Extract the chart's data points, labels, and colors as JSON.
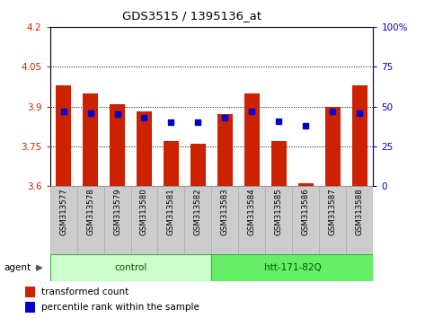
{
  "title": "GDS3515 / 1395136_at",
  "samples": [
    "GSM313577",
    "GSM313578",
    "GSM313579",
    "GSM313580",
    "GSM313581",
    "GSM313582",
    "GSM313583",
    "GSM313584",
    "GSM313585",
    "GSM313586",
    "GSM313587",
    "GSM313588"
  ],
  "transformed_count": [
    3.98,
    3.95,
    3.91,
    3.88,
    3.77,
    3.76,
    3.87,
    3.95,
    3.77,
    3.61,
    3.9,
    3.98
  ],
  "percentile_rank": [
    47,
    46,
    45,
    43,
    40,
    40,
    43,
    47,
    41,
    38,
    47,
    46
  ],
  "y_min": 3.6,
  "y_max": 4.2,
  "y_ticks": [
    3.6,
    3.75,
    3.9,
    4.05,
    4.2
  ],
  "y2_ticks": [
    0,
    25,
    50,
    75,
    100
  ],
  "bar_color": "#cc2200",
  "dot_color": "#0000cc",
  "bar_bottom": 3.6,
  "bar_width": 0.55,
  "groups": [
    {
      "label": "control",
      "start": 0,
      "end": 6,
      "color": "#ccffcc"
    },
    {
      "label": "htt-171-82Q",
      "start": 6,
      "end": 12,
      "color": "#66ee66"
    }
  ],
  "agent_label": "agent",
  "legend_bar_label": "transformed count",
  "legend_dot_label": "percentile rank within the sample",
  "grid_color": "#000000",
  "background_color": "#ffffff",
  "plot_bg_color": "#ffffff",
  "tick_bg_color": "#cccccc",
  "tick_bg_edge": "#aaaaaa"
}
